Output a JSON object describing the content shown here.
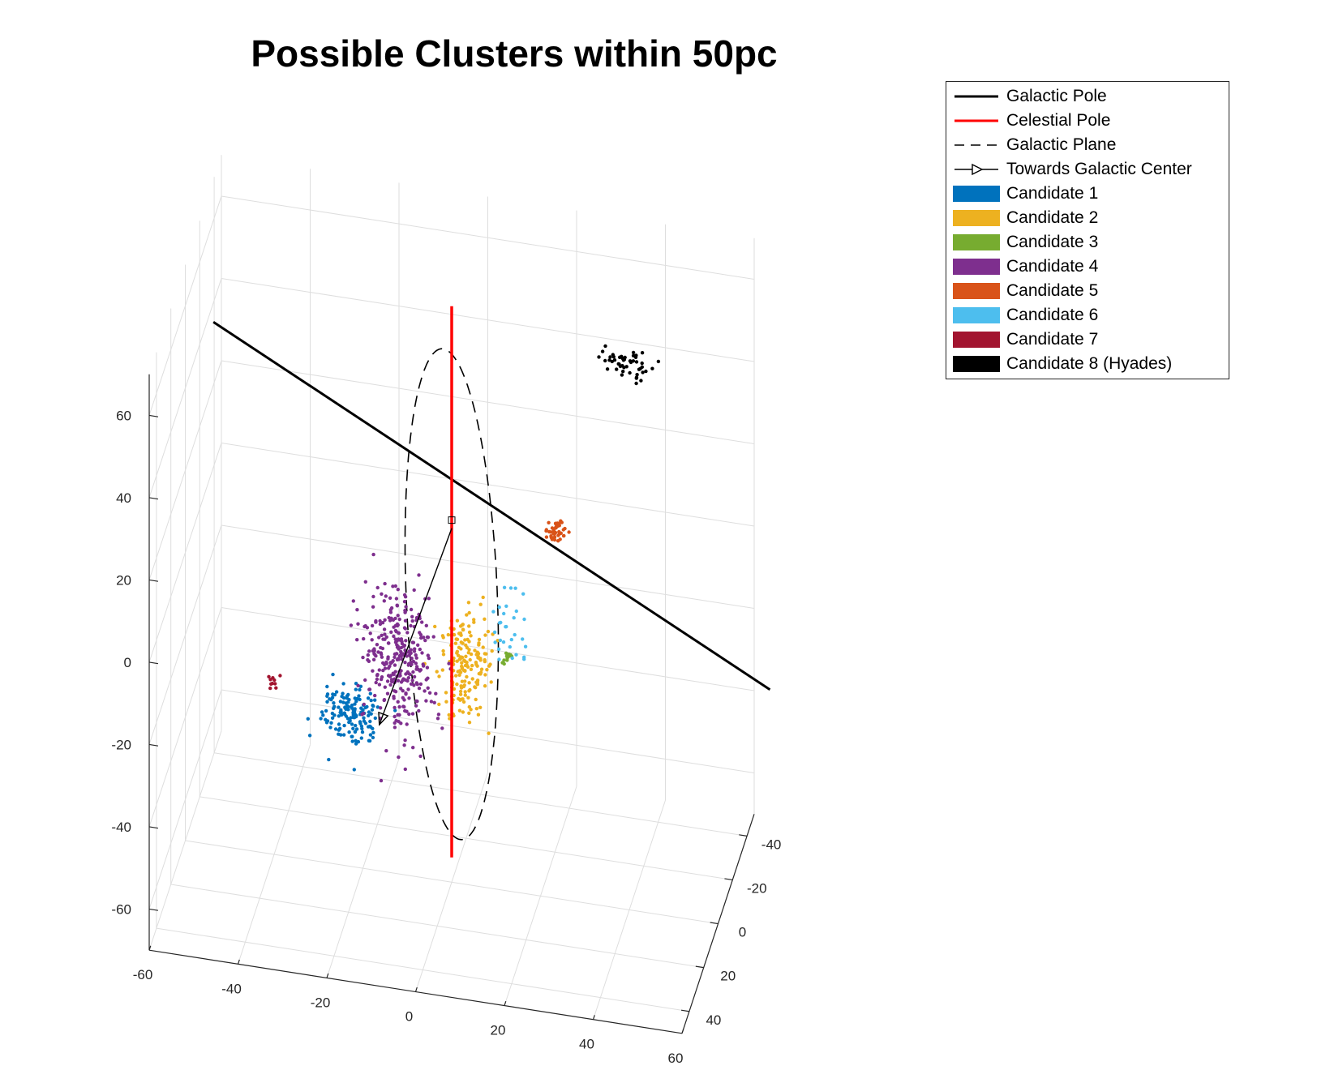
{
  "chart_data": {
    "type": "scatter",
    "projection": "3d",
    "title": "Possible Clusters within 50pc",
    "xlabel": "",
    "ylabel": "",
    "zlabel": "",
    "xlim": [
      -60,
      60
    ],
    "ylim": [
      -50,
      50
    ],
    "zlim": [
      -70,
      70
    ],
    "x_ticks": [
      "-60",
      "-40",
      "-20",
      "0",
      "20",
      "40",
      "60"
    ],
    "y_ticks": [
      "-40",
      "-20",
      "0",
      "20",
      "40"
    ],
    "z_ticks": [
      "-60",
      "-40",
      "-20",
      "0",
      "20",
      "40",
      "60"
    ],
    "grid": true,
    "legend_position": "outside-top-right",
    "reference_lines": [
      {
        "name": "Galactic Pole",
        "style": "solid",
        "color": "#000000"
      },
      {
        "name": "Celestial Pole",
        "style": "solid",
        "color": "#ff0000"
      },
      {
        "name": "Galactic Plane",
        "style": "dashed",
        "color": "#000000"
      },
      {
        "name": "Towards Galactic Center",
        "style": "arrow",
        "color": "#000000"
      }
    ],
    "series": [
      {
        "name": "Candidate 1",
        "color": "#0072bd",
        "center": [
          -22,
          5,
          -30
        ],
        "count": 150,
        "spread": [
          3.5,
          3,
          3.5
        ]
      },
      {
        "name": "Candidate 2",
        "color": "#edb120",
        "center": [
          0,
          -20,
          -28
        ],
        "count": 180,
        "spread": [
          3,
          3,
          6
        ]
      },
      {
        "name": "Candidate 3",
        "color": "#77ac30",
        "center": [
          10,
          -15,
          -22
        ],
        "count": 12,
        "spread": [
          0.8,
          0.8,
          0.8
        ]
      },
      {
        "name": "Candidate 4",
        "color": "#7e2f8e",
        "center": [
          -12,
          0,
          -18
        ],
        "count": 320,
        "spread": [
          4,
          3,
          8
        ]
      },
      {
        "name": "Candidate 5",
        "color": "#d95319",
        "center": [
          22,
          -10,
          14
        ],
        "count": 40,
        "spread": [
          1.5,
          1.5,
          1.2
        ]
      },
      {
        "name": "Candidate 6",
        "color": "#4dbeee",
        "center": [
          12,
          -5,
          -8
        ],
        "count": 30,
        "spread": [
          2.5,
          2,
          5
        ]
      },
      {
        "name": "Candidate 7",
        "color": "#a2142f",
        "center": [
          -38,
          10,
          -22
        ],
        "count": 10,
        "spread": [
          0.8,
          0.8,
          0.8
        ]
      },
      {
        "name": "Candidate 8 (Hyades)",
        "color": "#000000",
        "center": [
          38,
          -12,
          56
        ],
        "count": 50,
        "spread": [
          3,
          2,
          1.5
        ]
      }
    ]
  }
}
